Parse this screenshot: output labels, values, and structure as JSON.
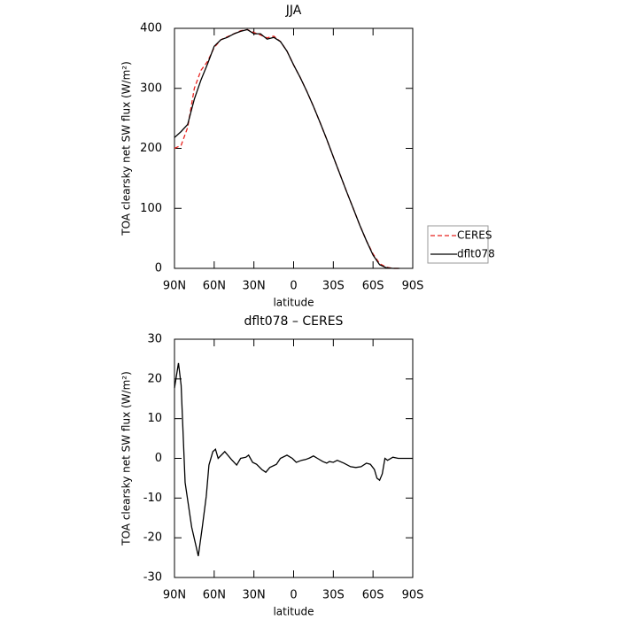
{
  "chart_data": [
    {
      "type": "line",
      "title": "JJA",
      "xlabel": "latitude",
      "ylabel": "TOA clearsky net SW flux (W/m²)",
      "x": [
        90,
        85,
        80,
        75,
        70,
        65,
        60,
        55,
        50,
        45,
        40,
        35,
        30,
        25,
        20,
        15,
        10,
        5,
        0,
        -5,
        -10,
        -15,
        -20,
        -25,
        -30,
        -35,
        -40,
        -45,
        -50,
        -55,
        -60,
        -65,
        -70,
        -75,
        -80
      ],
      "series": [
        {
          "name": "CERES",
          "color": "#e8231f",
          "linestyle": "dashed",
          "values": [
            200,
            205,
            235,
            300,
            330,
            345,
            368,
            381,
            386,
            391,
            396,
            398,
            393,
            389,
            384,
            387,
            378,
            362,
            339,
            318,
            295,
            270,
            243,
            215,
            186,
            157,
            128,
            100,
            72,
            46,
            24,
            8,
            2,
            0,
            0
          ]
        },
        {
          "name": "dflt078",
          "color": "#000000",
          "linestyle": "solid",
          "values": [
            218,
            228,
            240,
            282,
            314,
            341,
            370,
            381,
            385,
            391,
            395,
            398,
            391,
            391,
            382,
            385,
            378,
            362,
            339,
            318,
            295,
            270,
            243,
            215,
            186,
            157,
            128,
            100,
            72,
            46,
            22,
            6,
            1,
            0,
            0
          ]
        }
      ],
      "xlim": [
        90,
        -90
      ],
      "xticks": [
        {
          "value": 90,
          "label": "90N"
        },
        {
          "value": 60,
          "label": "60N"
        },
        {
          "value": 30,
          "label": "30N"
        },
        0,
        {
          "value": -30,
          "label": "30S"
        },
        {
          "value": -60,
          "label": "60S"
        },
        {
          "value": -90,
          "label": "90S"
        }
      ],
      "ylim": [
        0,
        400
      ],
      "yticks": [
        0,
        100,
        200,
        300,
        400
      ],
      "legend": "right"
    },
    {
      "type": "line",
      "title": "dflt078 – CERES",
      "xlabel": "latitude",
      "ylabel": "TOA clearsky net SW flux (W/m²)",
      "x": [
        90,
        87,
        85,
        82,
        77,
        72,
        69,
        66,
        64,
        61,
        59,
        57,
        52,
        47,
        43,
        40,
        36,
        34,
        31,
        28,
        24,
        21,
        18,
        13,
        10,
        5,
        1,
        -2,
        -6,
        -9,
        -12,
        -15,
        -18,
        -22,
        -25,
        -27,
        -30,
        -33,
        -38,
        -43,
        -47,
        -51,
        -55,
        -58,
        -61,
        -63,
        -65,
        -67,
        -69,
        -71,
        -75,
        -79,
        -90
      ],
      "series": [
        {
          "color": "#000000",
          "linestyle": "solid",
          "values": [
            17.7,
            24,
            18.4,
            -6.1,
            -17.3,
            -24.6,
            -17.3,
            -9.5,
            -1.7,
            1.7,
            2.3,
            0,
            1.7,
            -0.3,
            -1.7,
            0,
            0.3,
            0.8,
            -1,
            -1.5,
            -2.8,
            -3.5,
            -2.3,
            -1.5,
            0,
            0.8,
            0,
            -1,
            -0.5,
            -0.3,
            0.1,
            0.6,
            0,
            -0.8,
            -1.2,
            -0.8,
            -1,
            -0.5,
            -1.2,
            -2.1,
            -2.3,
            -2.1,
            -1.2,
            -1.5,
            -2.8,
            -5,
            -5.5,
            -3.9,
            0,
            -0.5,
            0.3,
            0,
            0
          ]
        }
      ],
      "xlim": [
        90,
        -90
      ],
      "xticks": [
        {
          "value": 90,
          "label": "90N"
        },
        {
          "value": 60,
          "label": "60N"
        },
        {
          "value": 30,
          "label": "30N"
        },
        0,
        {
          "value": -30,
          "label": "30S"
        },
        {
          "value": -60,
          "label": "60S"
        },
        {
          "value": -90,
          "label": "90S"
        }
      ],
      "ylim": [
        -30,
        30
      ],
      "yticks": [
        -30,
        -20,
        -10,
        0,
        10,
        20,
        30
      ]
    }
  ]
}
